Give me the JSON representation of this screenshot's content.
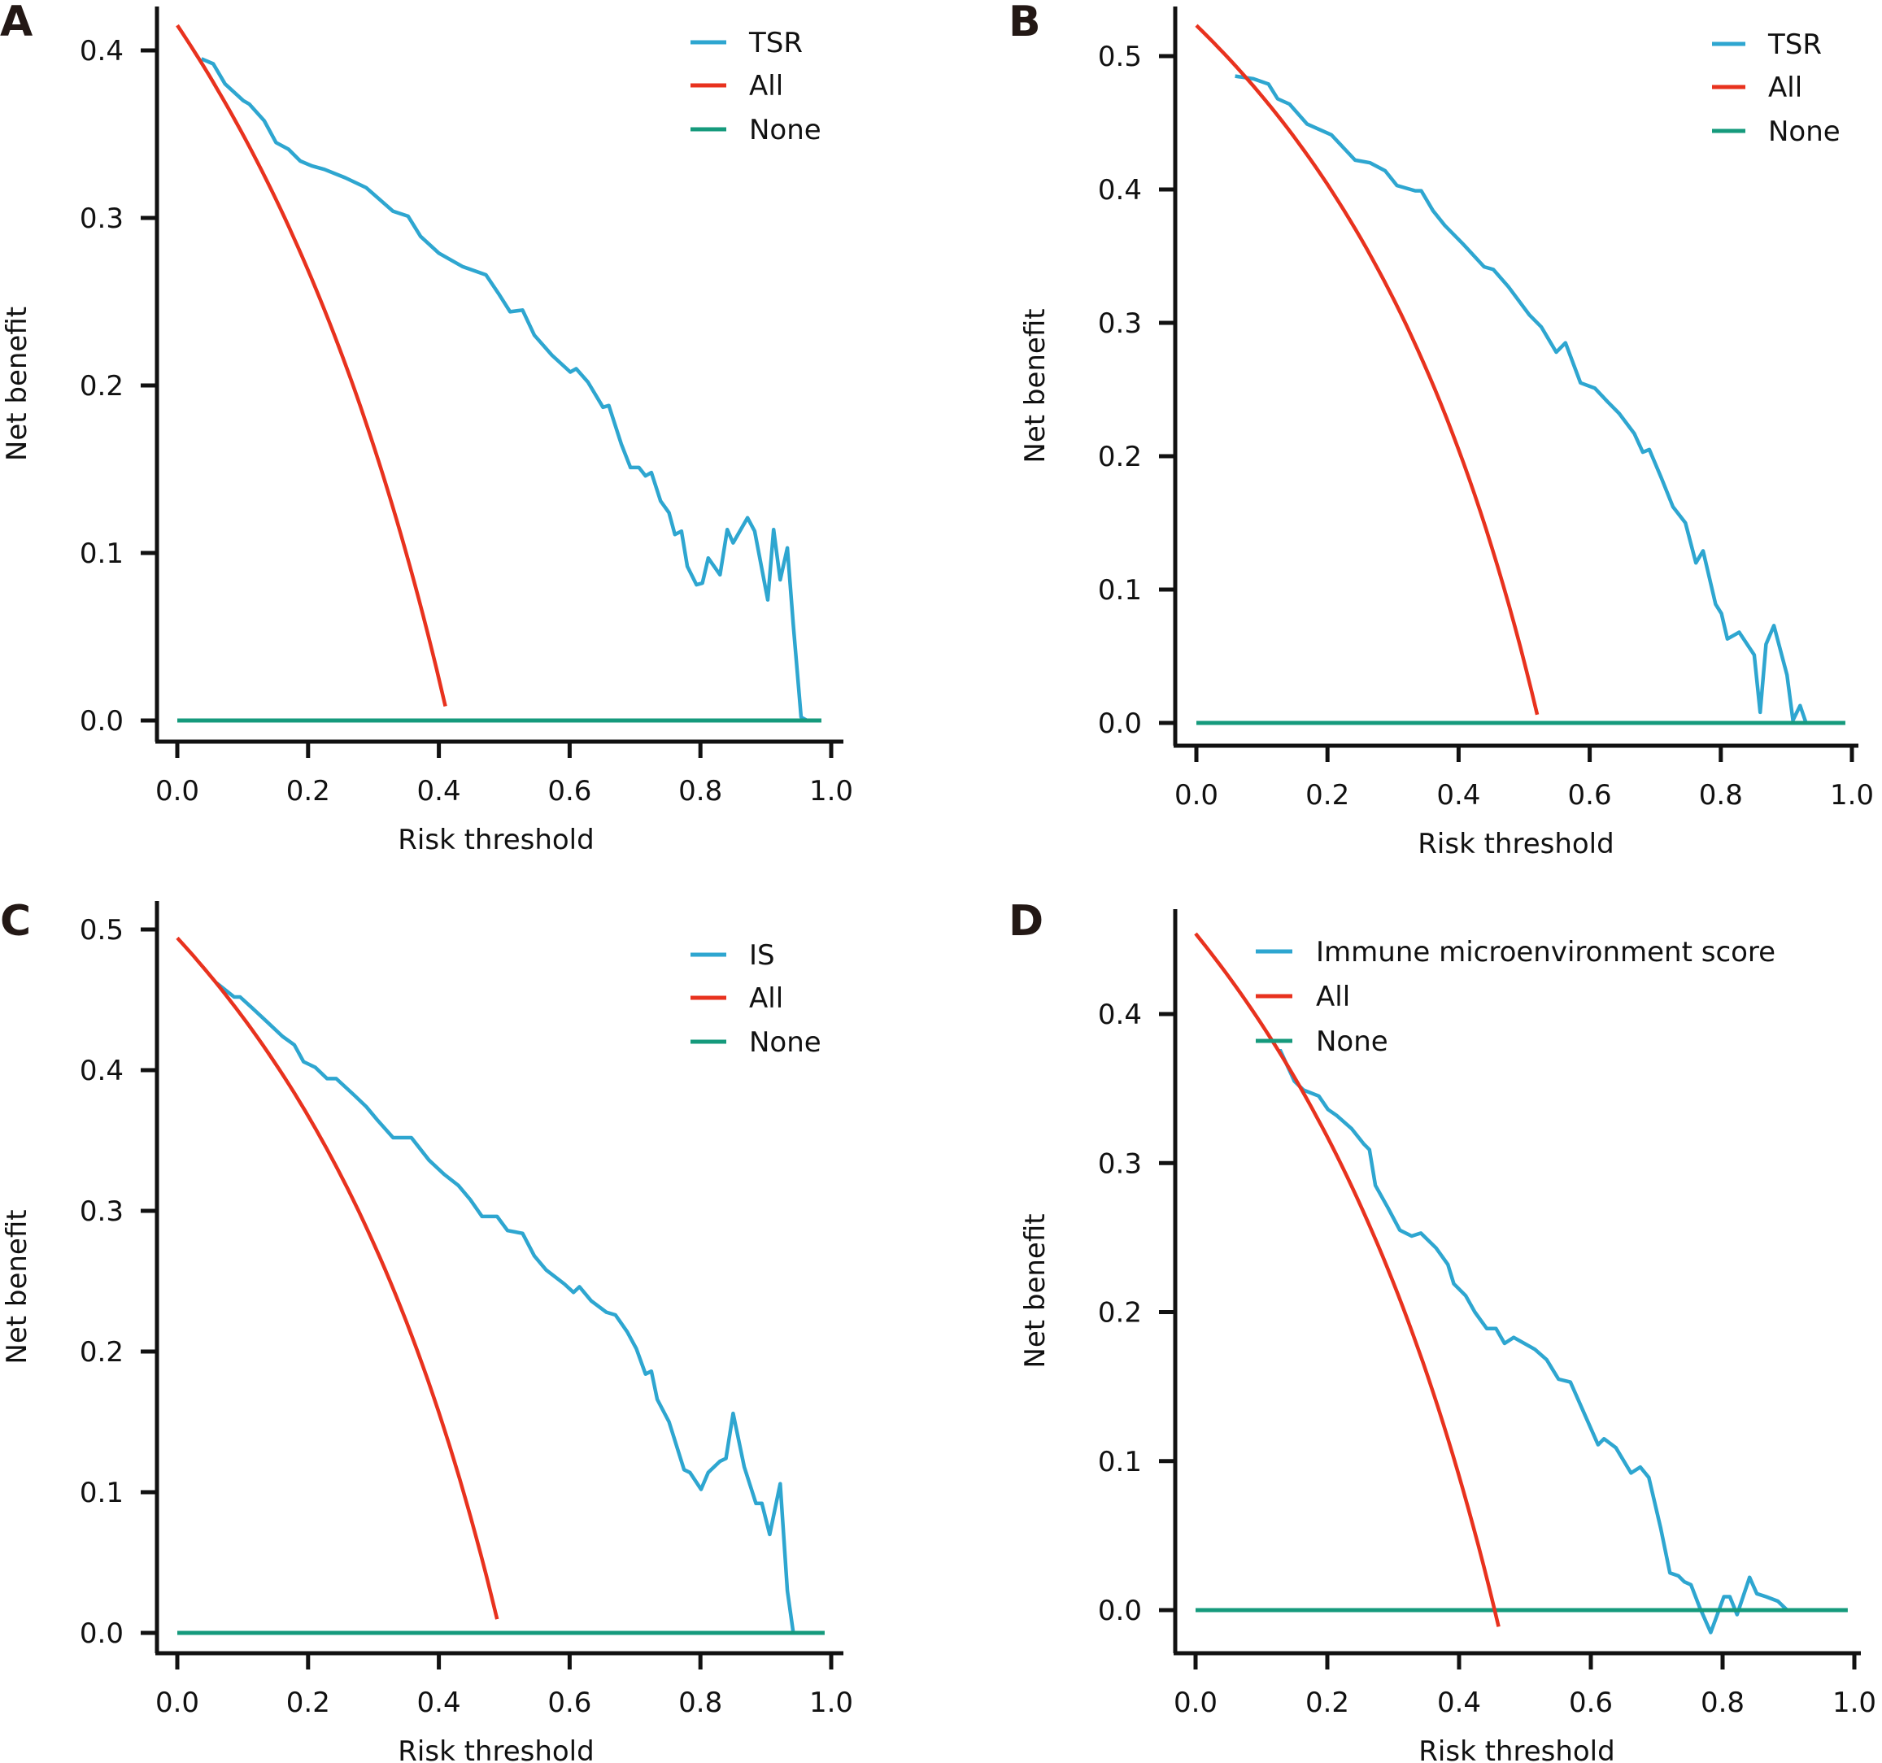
{
  "figure": {
    "panels": [
      "A",
      "B",
      "C",
      "D"
    ]
  },
  "chart_data": [
    {
      "panel_label": "A",
      "type": "line",
      "title": "",
      "xlabel": "Risk threshold",
      "ylabel": "Net benefit",
      "xlim": [
        0,
        1
      ],
      "ylim": [
        0,
        0.4
      ],
      "x_ticks": [
        "0.0",
        "0.2",
        "0.4",
        "0.6",
        "0.8",
        "1.0"
      ],
      "y_ticks": [
        "0.0",
        "0.1",
        "0.2",
        "0.3",
        "0.4"
      ],
      "grid": false,
      "legend_position": "top-right",
      "series": [
        {
          "name": "TSR",
          "color": "#2ea6d0",
          "x": [
            0.037,
            0.055,
            0.073,
            0.101,
            0.11,
            0.133,
            0.151,
            0.17,
            0.188,
            0.206,
            0.225,
            0.257,
            0.289,
            0.33,
            0.353,
            0.372,
            0.4,
            0.436,
            0.472,
            0.491,
            0.509,
            0.528,
            0.546,
            0.573,
            0.601,
            0.61,
            0.628,
            0.651,
            0.66,
            0.679,
            0.693,
            0.706,
            0.716,
            0.725,
            0.739,
            0.752,
            0.761,
            0.771,
            0.78,
            0.794,
            0.803,
            0.812,
            0.83,
            0.841,
            0.85,
            0.872,
            0.883,
            0.903,
            0.912,
            0.922,
            0.933,
            0.942,
            0.954,
            0.963
          ],
          "y": [
            0.395,
            0.392,
            0.38,
            0.37,
            0.368,
            0.358,
            0.345,
            0.341,
            0.334,
            0.331,
            0.329,
            0.324,
            0.318,
            0.304,
            0.301,
            0.289,
            0.279,
            0.271,
            0.266,
            0.255,
            0.244,
            0.245,
            0.23,
            0.218,
            0.208,
            0.21,
            0.202,
            0.187,
            0.188,
            0.165,
            0.151,
            0.151,
            0.146,
            0.148,
            0.131,
            0.124,
            0.111,
            0.113,
            0.092,
            0.081,
            0.082,
            0.097,
            0.087,
            0.114,
            0.106,
            0.121,
            0.113,
            0.072,
            0.114,
            0.084,
            0.103,
            0.057,
            0.002,
            0.0
          ]
        },
        {
          "name": "All",
          "color": "#e8321e",
          "prevalence": 0.415,
          "x_end": 0.41
        },
        {
          "name": "None",
          "color": "#159a7c",
          "x": [
            0,
            0.985
          ],
          "y": [
            0,
            0
          ]
        }
      ]
    },
    {
      "panel_label": "B",
      "type": "line",
      "title": "",
      "xlabel": "Risk threshold",
      "ylabel": "Net benefit",
      "xlim": [
        0,
        1
      ],
      "ylim": [
        0,
        0.5
      ],
      "x_ticks": [
        "0.0",
        "0.2",
        "0.4",
        "0.6",
        "0.8",
        "1.0"
      ],
      "y_ticks": [
        "0.0",
        "0.1",
        "0.2",
        "0.3",
        "0.4",
        "0.5"
      ],
      "grid": false,
      "legend_position": "top-right",
      "series": [
        {
          "name": "TSR",
          "color": "#2ea6d0",
          "x": [
            0.059,
            0.087,
            0.11,
            0.124,
            0.142,
            0.169,
            0.206,
            0.242,
            0.265,
            0.288,
            0.306,
            0.334,
            0.343,
            0.361,
            0.379,
            0.407,
            0.439,
            0.453,
            0.476,
            0.508,
            0.526,
            0.549,
            0.563,
            0.586,
            0.608,
            0.627,
            0.645,
            0.668,
            0.681,
            0.691,
            0.709,
            0.727,
            0.746,
            0.762,
            0.773,
            0.792,
            0.801,
            0.81,
            0.828,
            0.851,
            0.86,
            0.869,
            0.881,
            0.901,
            0.91,
            0.921,
            0.93
          ],
          "y": [
            0.485,
            0.483,
            0.479,
            0.468,
            0.464,
            0.449,
            0.441,
            0.422,
            0.42,
            0.414,
            0.403,
            0.399,
            0.399,
            0.384,
            0.373,
            0.359,
            0.342,
            0.34,
            0.327,
            0.306,
            0.297,
            0.278,
            0.285,
            0.255,
            0.251,
            0.241,
            0.232,
            0.217,
            0.203,
            0.205,
            0.184,
            0.162,
            0.15,
            0.12,
            0.129,
            0.089,
            0.082,
            0.063,
            0.068,
            0.051,
            0.008,
            0.059,
            0.073,
            0.036,
            0.002,
            0.013,
            0.0
          ]
        },
        {
          "name": "All",
          "color": "#e8321e",
          "prevalence": 0.523,
          "x_end": 0.52
        },
        {
          "name": "None",
          "color": "#159a7c",
          "x": [
            0,
            0.99
          ],
          "y": [
            0,
            0
          ]
        }
      ]
    },
    {
      "panel_label": "C",
      "type": "line",
      "title": "",
      "xlabel": "Risk threshold",
      "ylabel": "Net benefit",
      "xlim": [
        0,
        1
      ],
      "ylim": [
        0,
        0.5
      ],
      "x_ticks": [
        "0.0",
        "0.2",
        "0.4",
        "0.6",
        "0.8",
        "1.0"
      ],
      "y_ticks": [
        "0.0",
        "0.1",
        "0.2",
        "0.3",
        "0.4",
        "0.5"
      ],
      "grid": false,
      "legend_position": "top-right",
      "series": [
        {
          "name": "IS",
          "color": "#2ea6d0",
          "x": [
            0.06,
            0.087,
            0.096,
            0.115,
            0.138,
            0.161,
            0.179,
            0.193,
            0.211,
            0.229,
            0.243,
            0.271,
            0.289,
            0.307,
            0.33,
            0.358,
            0.385,
            0.408,
            0.43,
            0.448,
            0.466,
            0.489,
            0.505,
            0.528,
            0.546,
            0.564,
            0.592,
            0.606,
            0.615,
            0.633,
            0.656,
            0.67,
            0.688,
            0.702,
            0.716,
            0.725,
            0.734,
            0.752,
            0.775,
            0.784,
            0.801,
            0.812,
            0.83,
            0.839,
            0.85,
            0.867,
            0.885,
            0.894,
            0.906,
            0.922,
            0.933,
            0.942
          ],
          "y": [
            0.462,
            0.452,
            0.452,
            0.444,
            0.434,
            0.424,
            0.418,
            0.406,
            0.402,
            0.394,
            0.394,
            0.382,
            0.374,
            0.364,
            0.352,
            0.352,
            0.336,
            0.326,
            0.318,
            0.308,
            0.296,
            0.296,
            0.286,
            0.284,
            0.268,
            0.258,
            0.248,
            0.242,
            0.246,
            0.236,
            0.228,
            0.226,
            0.214,
            0.202,
            0.184,
            0.186,
            0.166,
            0.15,
            0.116,
            0.114,
            0.102,
            0.114,
            0.122,
            0.124,
            0.156,
            0.118,
            0.092,
            0.092,
            0.07,
            0.106,
            0.03,
            0.0
          ]
        },
        {
          "name": "All",
          "color": "#e8321e",
          "prevalence": 0.494,
          "x_end": 0.489
        },
        {
          "name": "None",
          "color": "#159a7c",
          "x": [
            0,
            0.99
          ],
          "y": [
            0,
            0
          ]
        }
      ]
    },
    {
      "panel_label": "D",
      "type": "line",
      "title": "",
      "xlabel": "Risk threshold",
      "ylabel": "Net benefit",
      "xlim": [
        0,
        1
      ],
      "ylim": [
        -0.02,
        0.45
      ],
      "x_ticks": [
        "0.0",
        "0.2",
        "0.4",
        "0.6",
        "0.8",
        "1.0"
      ],
      "y_ticks": [
        "0.0",
        "0.1",
        "0.2",
        "0.3",
        "0.4"
      ],
      "grid": false,
      "legend_position": "top-left",
      "series": [
        {
          "name": "Immune microenvironment score",
          "color": "#2ea6d0",
          "x": [
            0.1,
            0.123,
            0.15,
            0.164,
            0.187,
            0.201,
            0.214,
            0.237,
            0.255,
            0.264,
            0.273,
            0.292,
            0.31,
            0.328,
            0.342,
            0.365,
            0.383,
            0.392,
            0.41,
            0.424,
            0.442,
            0.456,
            0.469,
            0.483,
            0.515,
            0.533,
            0.551,
            0.569,
            0.592,
            0.611,
            0.62,
            0.638,
            0.661,
            0.675,
            0.688,
            0.706,
            0.72,
            0.733,
            0.742,
            0.752,
            0.765,
            0.782,
            0.802,
            0.811,
            0.822,
            0.841,
            0.852,
            0.866,
            0.884,
            0.898
          ],
          "y": [
            0.398,
            0.381,
            0.355,
            0.349,
            0.345,
            0.336,
            0.332,
            0.323,
            0.313,
            0.309,
            0.285,
            0.27,
            0.255,
            0.251,
            0.253,
            0.243,
            0.232,
            0.219,
            0.211,
            0.2,
            0.189,
            0.189,
            0.179,
            0.183,
            0.175,
            0.168,
            0.155,
            0.153,
            0.13,
            0.111,
            0.115,
            0.109,
            0.092,
            0.096,
            0.089,
            0.055,
            0.025,
            0.023,
            0.019,
            0.017,
            0.002,
            -0.015,
            0.009,
            0.009,
            -0.003,
            0.022,
            0.011,
            0.009,
            0.006,
            0.0
          ]
        },
        {
          "name": "All",
          "color": "#e8321e",
          "prevalence": 0.454,
          "x_end": 0.46
        },
        {
          "name": "None",
          "color": "#159a7c",
          "x": [
            0,
            0.99
          ],
          "y": [
            0,
            0
          ]
        }
      ]
    }
  ]
}
